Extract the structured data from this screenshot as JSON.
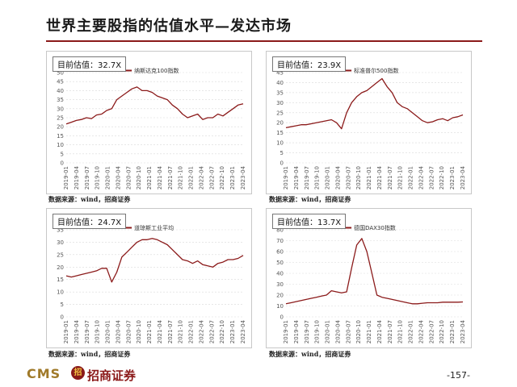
{
  "header": {
    "title": "世界主要股指的估值水平—发达市场"
  },
  "footer": {
    "logo_text": "CMS",
    "logo_mark": "招",
    "logo_cn": "招商证券",
    "page_number": "-157-"
  },
  "colors": {
    "series": "#8b1a1a",
    "grid": "#d9d9d9",
    "accent": "#8b1a1a"
  },
  "chart_data": [
    {
      "type": "line",
      "badge_label": "目前估值：",
      "badge_value": "32.7X",
      "source": "数据来源：wind，招商证券",
      "xticks": [
        "2019-01",
        "2019-04",
        "2019-07",
        "2019-10",
        "2020-01",
        "2020-04",
        "2020-07",
        "2020-10",
        "2021-01",
        "2021-04",
        "2021-07",
        "2021-10",
        "2022-01",
        "2022-04",
        "2022-07",
        "2022-10",
        "2023-01",
        "2023-04"
      ],
      "ylim": [
        0,
        50
      ],
      "yticks": [
        0,
        5,
        10,
        15,
        20,
        25,
        30,
        35,
        40,
        45,
        50
      ],
      "series": [
        {
          "name": "纳斯达克100指数",
          "values": [
            21.5,
            22.5,
            23.5,
            24,
            25,
            24.5,
            26.5,
            27,
            29,
            30,
            35,
            37,
            39,
            41,
            42,
            40,
            40,
            39,
            37,
            36,
            35,
            32,
            30,
            27,
            25,
            26,
            27,
            24,
            25,
            25,
            27,
            26,
            28,
            30,
            32,
            32.7
          ]
        }
      ]
    },
    {
      "type": "line",
      "badge_label": "目前估值：",
      "badge_value": "23.9X",
      "source": "数据来源：wind，招商证券",
      "xticks": [
        "2019-01",
        "2019-04",
        "2019-07",
        "2019-10",
        "2020-01",
        "2020-04",
        "2020-07",
        "2020-10",
        "2021-01",
        "2021-04",
        "2021-07",
        "2021-10",
        "2022-01",
        "2022-04",
        "2022-07",
        "2022-10",
        "2023-01",
        "2023-04"
      ],
      "ylim": [
        0,
        45
      ],
      "yticks": [
        0,
        5,
        10,
        15,
        20,
        25,
        30,
        35,
        40,
        45
      ],
      "series": [
        {
          "name": "标准普尔500指数",
          "values": [
            17.5,
            18,
            18.5,
            19,
            19,
            19.5,
            20,
            20.5,
            21,
            21.5,
            20,
            17,
            25,
            30,
            33,
            35,
            36,
            38,
            40,
            42,
            38,
            35,
            30,
            28,
            27,
            25,
            23,
            21,
            20,
            20.5,
            21.5,
            22,
            21,
            22.5,
            23,
            23.9
          ]
        }
      ]
    },
    {
      "type": "line",
      "badge_label": "目前估值：",
      "badge_value": "24.7X",
      "source": "数据来源：wind，招商证券",
      "xticks": [
        "2019-01",
        "2019-04",
        "2019-07",
        "2019-10",
        "2020-01",
        "2020-04",
        "2020-07",
        "2020-10",
        "2021-01",
        "2021-04",
        "2021-07",
        "2021-10",
        "2022-01",
        "2022-04",
        "2022-07",
        "2022-10",
        "2023-01",
        "2023-04"
      ],
      "ylim": [
        0,
        35
      ],
      "yticks": [
        0,
        5,
        10,
        15,
        20,
        25,
        30,
        35
      ],
      "series": [
        {
          "name": "道琼斯工业平均",
          "values": [
            16.5,
            16,
            16.5,
            17,
            17.5,
            18,
            18.5,
            19.5,
            19.5,
            14,
            18,
            24,
            26,
            28,
            30,
            31,
            31,
            31.5,
            31,
            30,
            29,
            27,
            25,
            23,
            22.5,
            21.5,
            22.5,
            21,
            20.5,
            20,
            21.5,
            22,
            23,
            23,
            23.5,
            24.7
          ]
        }
      ]
    },
    {
      "type": "line",
      "badge_label": "目前估值：",
      "badge_value": "13.7X",
      "source": "数据来源：wind，招商证券",
      "xticks": [
        "2019-01",
        "2019-04",
        "2019-07",
        "2019-10",
        "2020-01",
        "2020-04",
        "2020-07",
        "2020-10",
        "2021-01",
        "2021-04",
        "2021-07",
        "2021-10",
        "2022-01",
        "2022-04",
        "2022-07",
        "2022-10",
        "2023-01",
        "2023-04"
      ],
      "ylim": [
        0,
        80
      ],
      "yticks": [
        0,
        10,
        20,
        30,
        40,
        50,
        60,
        70,
        80
      ],
      "series": [
        {
          "name": "德国DAX30指数",
          "values": [
            12,
            13,
            14,
            15,
            16,
            17,
            18,
            19,
            20,
            24,
            23,
            22,
            23,
            45,
            66,
            72,
            60,
            40,
            20,
            18,
            17,
            16,
            15,
            14,
            13,
            12,
            12,
            12.5,
            13,
            13,
            13,
            13.5,
            13.5,
            13.5,
            13.5,
            13.7
          ]
        }
      ]
    }
  ]
}
